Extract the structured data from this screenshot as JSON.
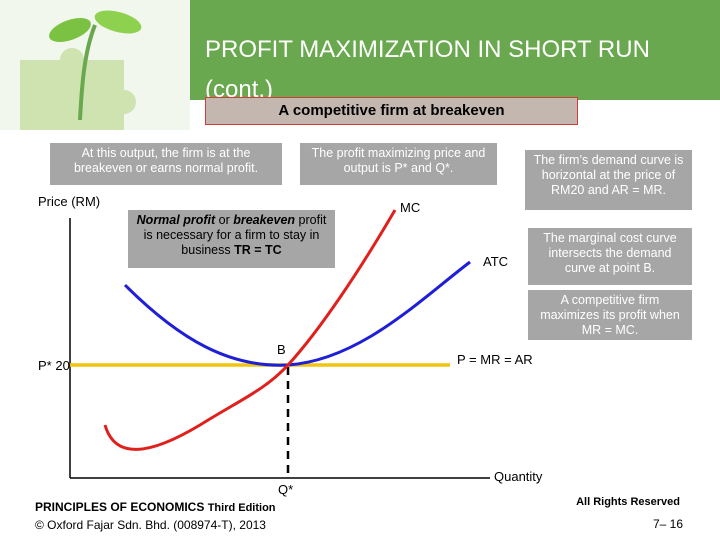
{
  "header": {
    "title": "PROFIT MAXIMIZATION IN SHORT RUN (cont.)",
    "subtitle": "A competitive firm at breakeven"
  },
  "callouts": {
    "breakeven_output": "At this output, the firm is at the breakeven or earns normal profit.",
    "profit_max": "The profit maximizing price and output is P* and Q*.",
    "demand_curve": "The firm’s demand curve is horizontal at the price of RM20 and AR = MR.",
    "normal_profit": [
      "Normal profit",
      " or ",
      "breakeven",
      " profit is necessary for a firm to stay in business  ",
      "TR = TC"
    ],
    "marginal_cost": "The marginal cost curve intersects the demand curve at point B.",
    "max_rule": "A competitive firm maximizes its profit when MR = MC."
  },
  "diagram": {
    "y_axis_label": "Price (RM)",
    "x_axis_label": "Quantity",
    "price_label": "P* 20",
    "quantity_label": "Q*",
    "mc_label": "MC",
    "atc_label": "ATC",
    "demand_label": "P = MR = AR",
    "point_label": "B"
  },
  "footer": {
    "book": "PRINCIPLES OF ECONOMICS",
    "edition": "Third Edition",
    "copyright": "© Oxford Fajar Sdn. Bhd. (008974-T), 2013",
    "rights": "All Rights Reserved",
    "page": "7– 16"
  }
}
